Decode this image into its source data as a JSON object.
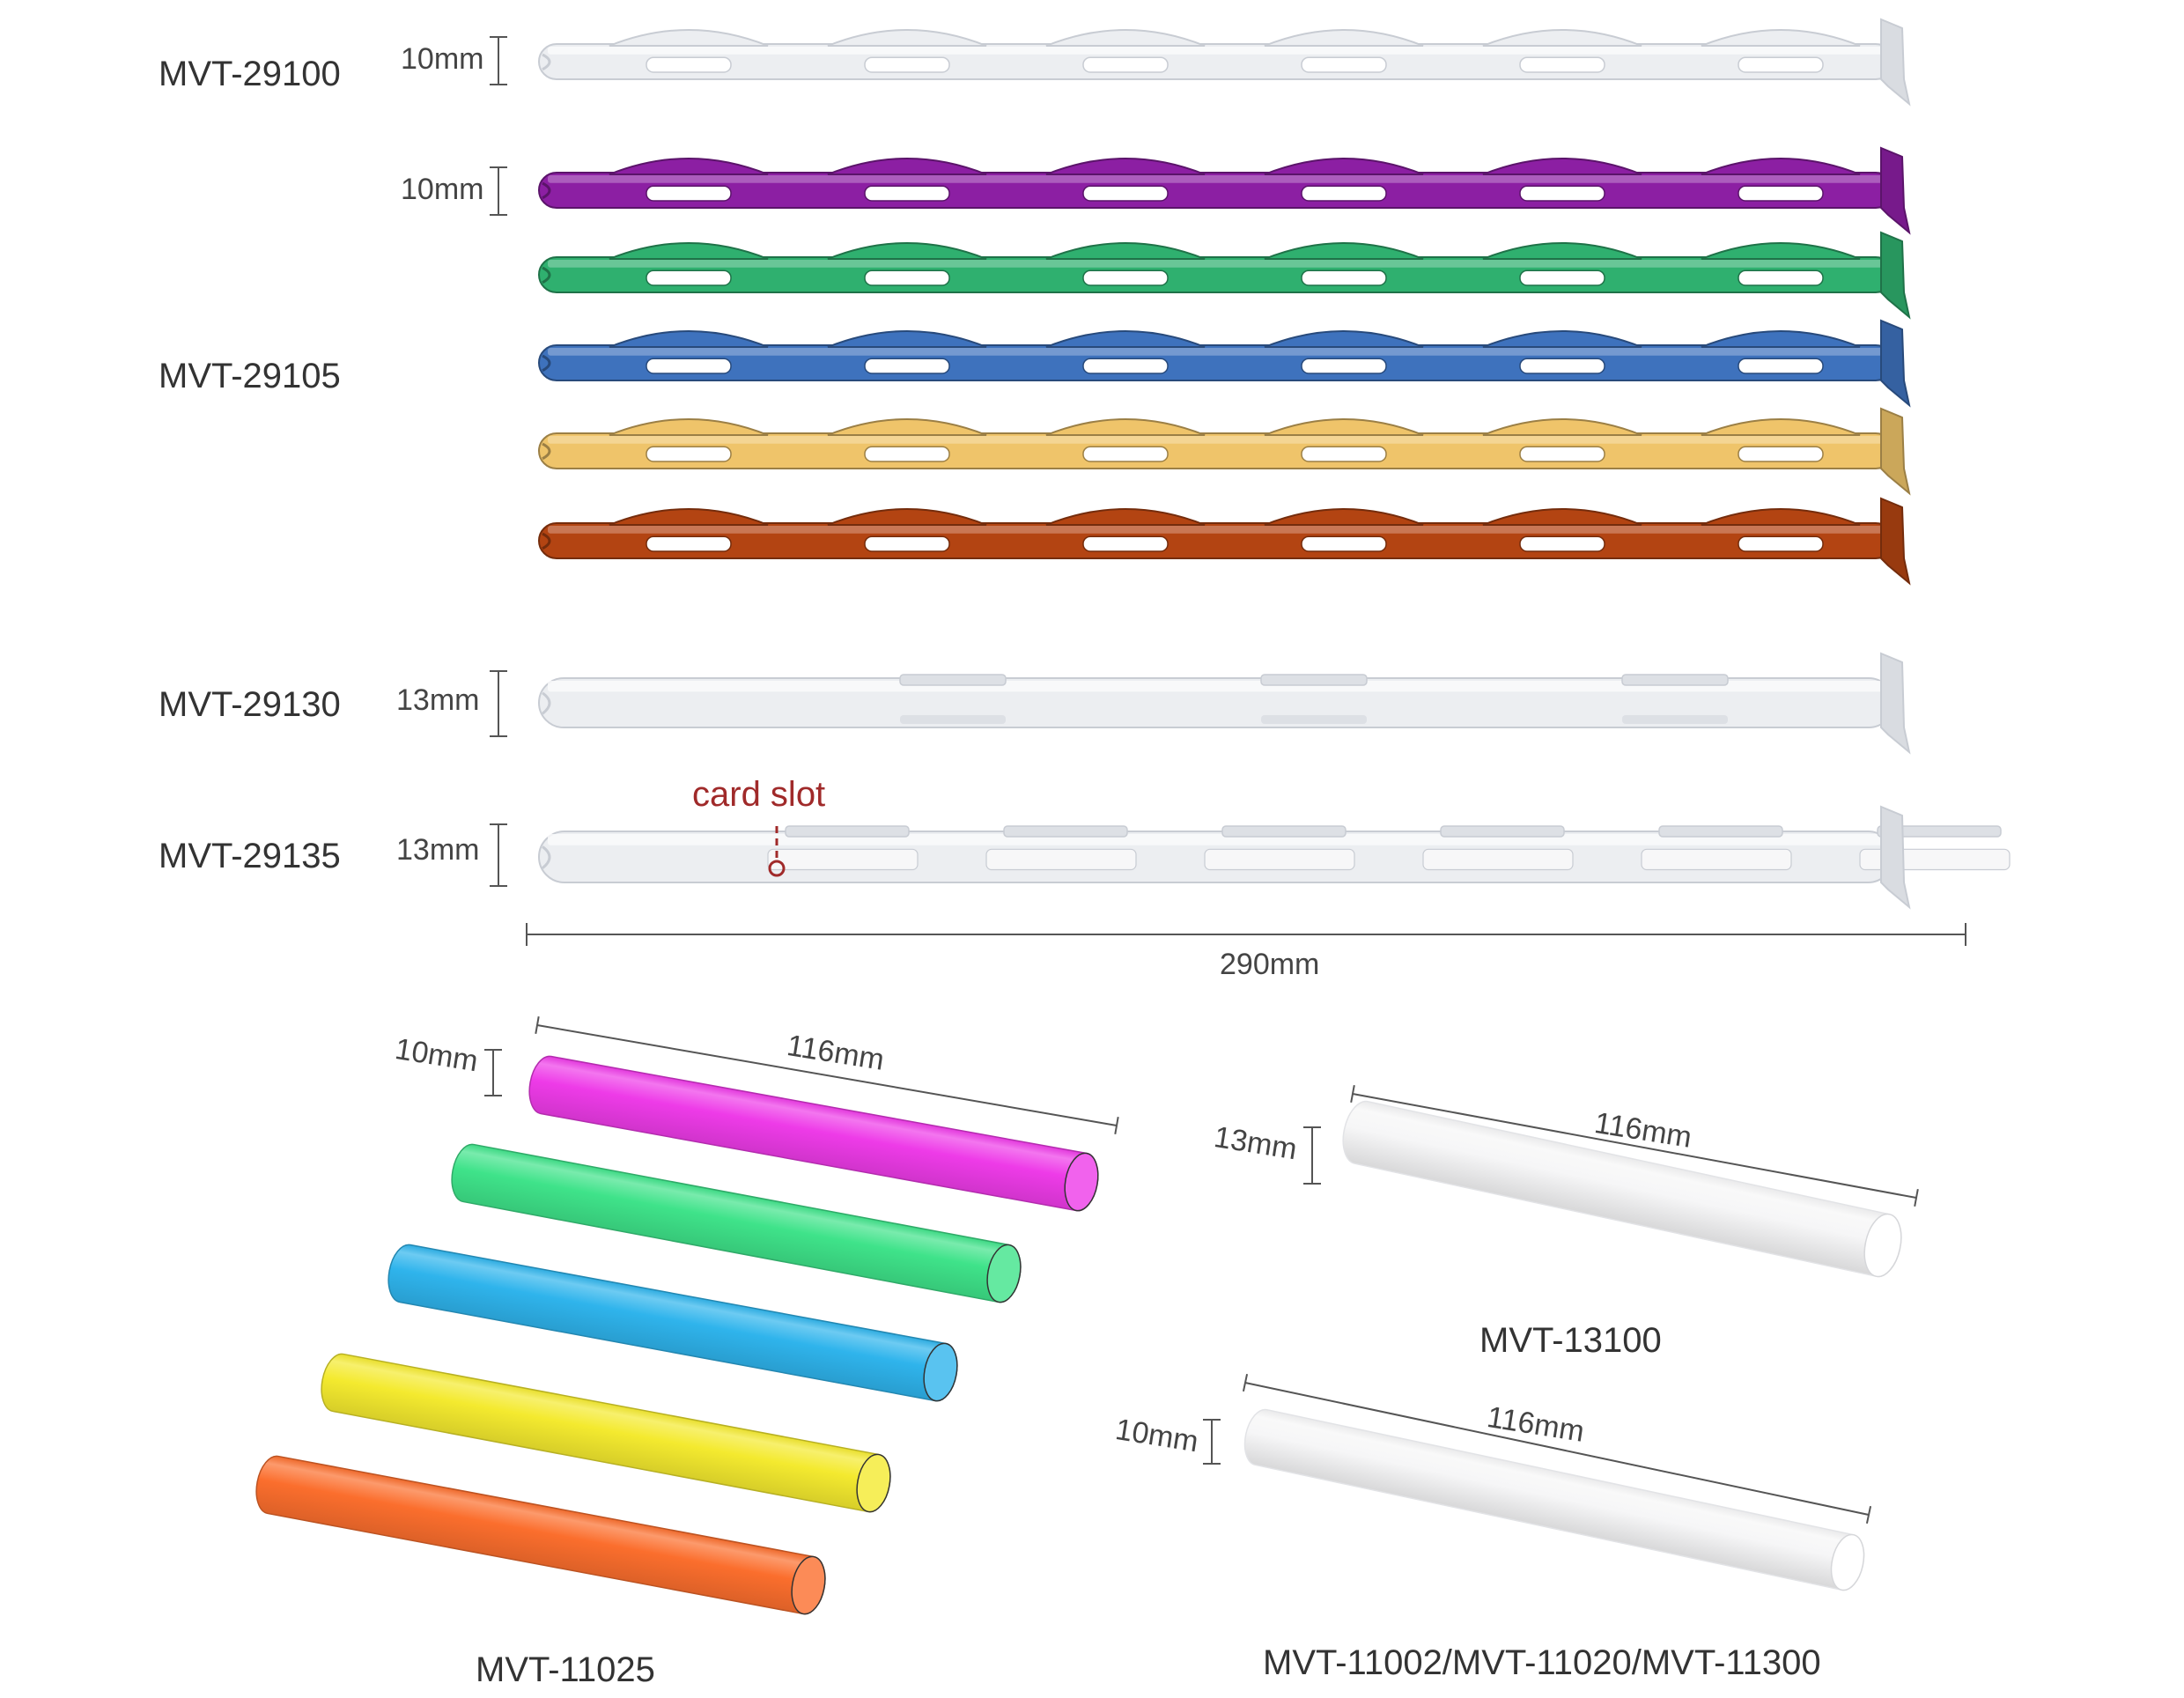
{
  "top_section": {
    "rails": [
      {
        "model": "MVT-29100",
        "height_label": "10mm",
        "colors": [
          "#e4e6ea"
        ]
      },
      {
        "model": "MVT-29105",
        "height_label": "10mm",
        "colors": [
          "#8c1fa3",
          "#2fb06f",
          "#3e72bd",
          "#efc46a",
          "#b34412"
        ]
      },
      {
        "model": "MVT-29130",
        "height_label": "13mm",
        "colors": [
          "#e4e6ea"
        ]
      },
      {
        "model": "MVT-29135",
        "height_label": "13mm",
        "colors": [
          "#e4e6ea"
        ]
      }
    ],
    "card_slot_label": "card slot",
    "length_label": "290mm"
  },
  "bottom_section": {
    "colored_tubes": {
      "model": "MVT-11025",
      "diameter_label": "10mm",
      "length_label": "116mm",
      "colors": [
        "#ee3be8",
        "#3fe38a",
        "#2fb4ec",
        "#f4ea2f",
        "#fb6e2d"
      ]
    },
    "clear_tube_13": {
      "model": "MVT-13100",
      "diameter_label": "13mm",
      "length_label": "116mm"
    },
    "clear_tube_10": {
      "model": "MVT-11002/MVT-11020/MVT-11300",
      "diameter_label": "10mm",
      "length_label": "116mm"
    }
  }
}
